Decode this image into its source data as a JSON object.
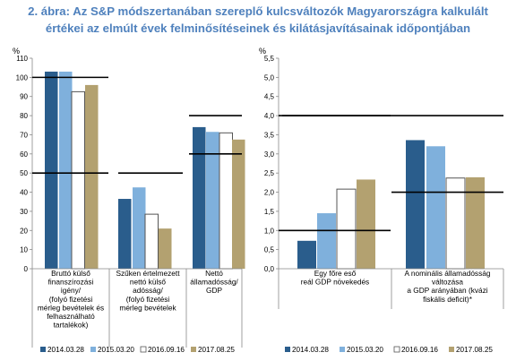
{
  "title_lines": [
    "2. ábra: Az S&P módszertanában szereplő kulcsváltozók Magyarországra kalkulált",
    "értékei az elmúlt évek felminősítéseinek és kilátásjavításainak időpontjában"
  ],
  "colors": {
    "s0": "#2a5d8c",
    "s1": "#7fb0dc",
    "s2": "#ffffff",
    "s3": "#b3a170",
    "threshold": "#000000",
    "title": "#4f81bd"
  },
  "chart_data": [
    {
      "type": "bar",
      "ylabel": "%",
      "ylim": [
        0,
        110
      ],
      "yticks": [
        "0",
        "10",
        "20",
        "30",
        "40",
        "50",
        "60",
        "70",
        "80",
        "90",
        "100",
        "110"
      ],
      "categories": [
        [
          "Bruttó külső",
          "finanszírozási",
          "igény/",
          "(folyó fizetési",
          "mérleg bevételek és",
          "felhasználható",
          "tartalékok)"
        ],
        [
          "Szűken értelmezett",
          "nettó külső",
          "adósság/",
          "(folyó fizetési",
          "mérleg bevételek"
        ],
        [
          "Nettó",
          "államadósság/",
          "GDP"
        ]
      ],
      "series": [
        {
          "name": "2014.03.28",
          "values": [
            103,
            36.5,
            74
          ]
        },
        {
          "name": "2015.03.20",
          "values": [
            103,
            42.5,
            71.5
          ]
        },
        {
          "name": "2016.09.16",
          "values": [
            92.5,
            28.5,
            71
          ]
        },
        {
          "name": "2017.08.25",
          "values": [
            96,
            21,
            67.5
          ]
        }
      ],
      "thresholds": [
        [
          100,
          50
        ],
        [
          50
        ],
        [
          80,
          60
        ]
      ]
    },
    {
      "type": "bar",
      "ylabel": "%",
      "ylim": [
        0,
        5.5
      ],
      "yticks": [
        "0,0",
        "0,5",
        "1,0",
        "1,5",
        "2,0",
        "2,5",
        "3,0",
        "3,5",
        "4,0",
        "4,5",
        "5,0",
        "5,5"
      ],
      "categories": [
        [
          "Egy főre eső",
          "reál GDP növekedés"
        ],
        [
          "A nominális államadósság",
          "változása",
          "a GDP arányában (kvázi",
          "fiskális deficit)*"
        ]
      ],
      "series": [
        {
          "name": "2014.03.28",
          "values": [
            0.73,
            3.36
          ]
        },
        {
          "name": "2015.03.20",
          "values": [
            1.45,
            3.2
          ]
        },
        {
          "name": "2016.09.16",
          "values": [
            2.08,
            2.37
          ]
        },
        {
          "name": "2017.08.25",
          "values": [
            2.33,
            2.39
          ]
        }
      ],
      "thresholds": [
        [
          4.0,
          1.0
        ],
        [
          4.0,
          2.0
        ]
      ]
    }
  ]
}
